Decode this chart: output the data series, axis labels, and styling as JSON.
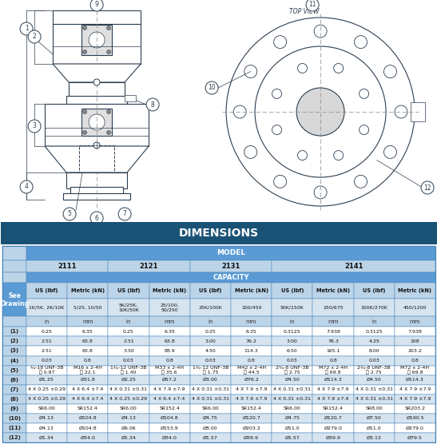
{
  "title": "DIMENSIONS",
  "title_bg": "#1a5276",
  "title_fg": "#ffffff",
  "header_bg": "#5b9bd5",
  "header_fg": "#ffffff",
  "row_bg_alt": "#d6e4f0",
  "row_bg_main": "#ffffff",
  "header_light_bg": "#bcd4e8",
  "border_color": "#4a86b8",
  "drawing_bg": "#ffffff",
  "top_view_label": "TOP VIEW",
  "capacities": [
    "1K/5K, 2K/10K",
    "5/25, 10/50",
    "5K/25K,\n10K/50K",
    "25/100,\n50/250",
    "25K/100K",
    "100/450",
    "50K/150K",
    "250/675",
    "100K/270K",
    "450/1200"
  ],
  "units": [
    "in",
    "mm",
    "in",
    "mm",
    "in",
    "mm",
    "in",
    "mm",
    "in",
    "mm"
  ],
  "unit_labels": [
    "US (lbf)",
    "Metric (kN)",
    "US (lbf)",
    "Metric (kN)",
    "US (lbf)",
    "Metric (kN)",
    "US (lbf)",
    "Metric (kN)",
    "US (lbf)",
    "Metric (kN)"
  ],
  "rows": [
    [
      "(1)",
      "0.25",
      "6.35",
      "0.25",
      "6.35",
      "0.25",
      "6.35",
      "0.3125",
      "7.938",
      "0.3125",
      "7.938"
    ],
    [
      "(2)",
      "2.51",
      "63.8",
      "2.51",
      "63.8",
      "3.00",
      "76.2",
      "3.00",
      "76.3",
      "4.25",
      "108"
    ],
    [
      "(3)",
      "2.51",
      "63.8",
      "3.50",
      "88.9",
      "4.50",
      "114.3",
      "6.50",
      "165.1",
      "8.00",
      "203.2"
    ],
    [
      "(4)",
      "0.03",
      "0.8",
      "0.03",
      "0.8",
      "0.03",
      "0.8",
      "0.03",
      "0.8",
      "0.03",
      "0.8"
    ],
    [
      "(5)",
      "¼-18 UNF-3B\n⦓ 0.87",
      "M16 x 2-4H\n⦓ 22.1",
      "1¼-12 UNF-3B\n⦓ 1.40",
      "M33 x 2-4H\n⦓ 35.6",
      "1¼-12 UNF-3B\n⦓ 1.75",
      "M42 x 2-4H\n⦓ 44.5",
      "2¼-8 UNF-3B\n⦓ 2.75",
      "M72 x 2-4H\n⦓ 69.8",
      "2¼-8 UNF-3B\n⦓ 2.75",
      "M72 x 2-4H\n⦓ 69.8"
    ],
    [
      "(6)",
      "Ø1.25",
      "Ø31.8",
      "Ø2.25",
      "Ø57.2",
      "Ø3.00",
      "Ø76.2",
      "Ø4.50",
      "Ø114.3",
      "Ø4.50",
      "Ø114.3"
    ],
    [
      "(7)",
      "4 X 0.25 ±0.29",
      "4 X 6.4 ±7.4",
      "4 X 0.31 ±0.31",
      "4 X 7.9 ±7.9",
      "4 X 0.31 ±0.31",
      "4 X 7.9 ±7.9",
      "4 X 0.31 ±0.31",
      "4 X 7.9 ±7.9",
      "4 X 0.31 ±0.31",
      "4 X 7.9 ±7.9"
    ],
    [
      "(8)",
      "4 X 0.25 ±0.29",
      "4 X 6.4 ±7.4",
      "4 X 0.25 ±0.29",
      "4 X 6.4 ±7.4",
      "4 X 0.31 ±0.31",
      "4 X 7.9 ±7.9",
      "4 X 0.31 ±0.31",
      "4 X 7.9 ±7.9",
      "4 X 0.31 ±0.31",
      "4 X 7.9 ±7.9"
    ],
    [
      "(9)",
      "SR6.00",
      "SR152.4",
      "SR6.00",
      "SR152.4",
      "SR6.00",
      "SR152.4",
      "SR6.00",
      "SR152.4",
      "SR8.00",
      "SR203.2"
    ],
    [
      "(10)",
      "Ø4.13",
      "Ø104.8",
      "Ø4.13",
      "Ø104.8",
      "Ø4.75",
      "Ø120.7",
      "Ø4.75",
      "Ø120.7",
      "Ø7.50",
      "Ø190.5"
    ],
    [
      "(11)",
      "Ø4.13",
      "Ø104.8",
      "Ø6.06",
      "Ø153.9",
      "Ø8.00",
      "Ø203.2",
      "Ø11.0",
      "Ø279.0",
      "Ø11.0",
      "Ø279.0"
    ],
    [
      "(12)",
      "Ø1.34",
      "Ø34.0",
      "Ø1.34",
      "Ø34.0",
      "Ø1.57",
      "Ø39.9",
      "Ø1.57",
      "Ø39.9",
      "Ø3.13",
      "Ø79.5"
    ]
  ]
}
